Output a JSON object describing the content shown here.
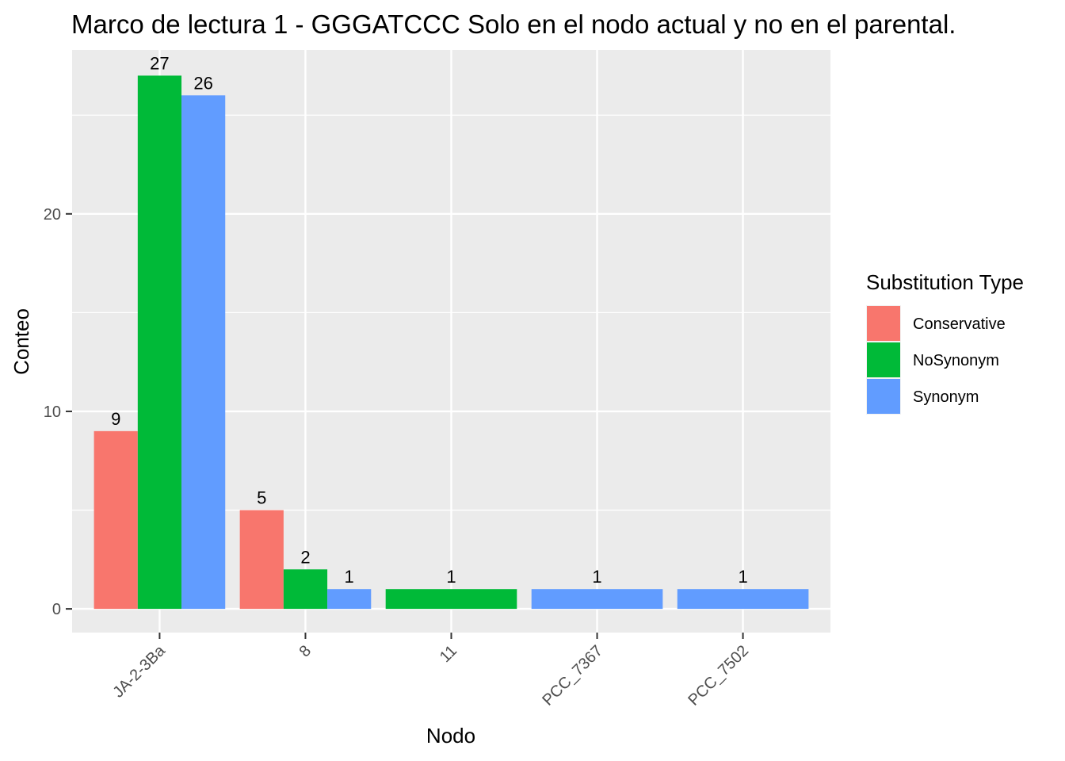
{
  "chart_data": {
    "type": "bar",
    "title": "Marco de lectura 1 - GGGATCCC Solo en el nodo actual y no en el parental.",
    "xlabel": "Nodo",
    "ylabel": "Conteo",
    "categories": [
      "JA-2-3Ba",
      "8",
      "11",
      "PCC_7367",
      "PCC_7502"
    ],
    "series": [
      {
        "name": "Conservative",
        "color": "#F8766D",
        "values": [
          9,
          5,
          null,
          null,
          null
        ]
      },
      {
        "name": "NoSynonym",
        "color": "#00BA38",
        "values": [
          27,
          2,
          1,
          null,
          null
        ]
      },
      {
        "name": "Synonym",
        "color": "#619CFF",
        "values": [
          26,
          1,
          null,
          1,
          1
        ]
      }
    ],
    "ylim": [
      -1.2,
      28.3
    ],
    "yticks": [
      0,
      10,
      20
    ],
    "grid": true,
    "panel_background": "#EBEBEB",
    "legend": {
      "title": "Substitution Type",
      "position": "right"
    }
  }
}
